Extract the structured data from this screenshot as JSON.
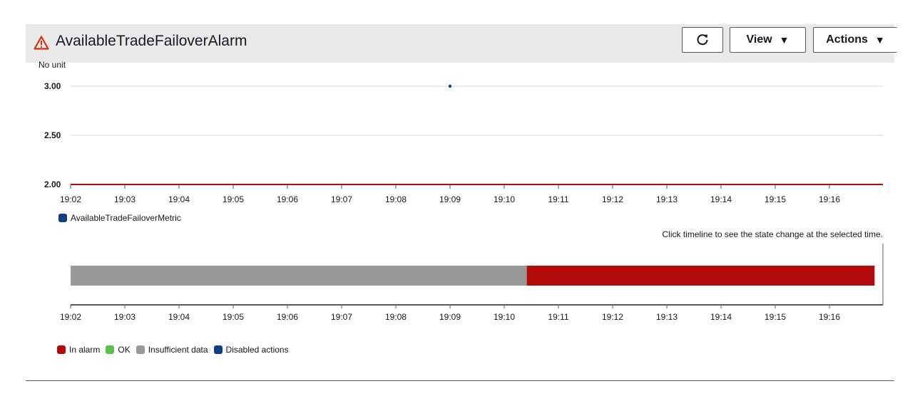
{
  "header": {
    "title": "AvailableTradeFailoverAlarm",
    "status_icon": "warning-triangle-icon",
    "refresh_icon": "refresh-icon",
    "view_label": "View",
    "actions_label": "Actions",
    "caret": "▼"
  },
  "metric_chart": {
    "unit_label": "No unit",
    "legend": [
      {
        "label": "AvailableTradeFailoverMetric",
        "color": "#0f3f80"
      }
    ]
  },
  "timeline": {
    "hint": "Click timeline to see the state change at the selected time.",
    "legend": [
      {
        "label": "In alarm",
        "color": "#b30b0b"
      },
      {
        "label": "OK",
        "color": "#5ac24a"
      },
      {
        "label": "Insufficient data",
        "color": "#999999"
      },
      {
        "label": "Disabled actions",
        "color": "#0f3f80"
      }
    ]
  },
  "chart_data": [
    {
      "type": "scatter",
      "ylabel": "No unit",
      "ylim": [
        2.0,
        3.0
      ],
      "yticks": [
        "2.00",
        "2.50",
        "3.00"
      ],
      "xticks": [
        "19:02",
        "19:03",
        "19:04",
        "19:05",
        "19:06",
        "19:07",
        "19:08",
        "19:09",
        "19:10",
        "19:11",
        "19:12",
        "19:13",
        "19:14",
        "19:15",
        "19:16"
      ],
      "xlim": [
        "19:02",
        "19:16:50"
      ],
      "series": [
        {
          "name": "AvailableTradeFailoverMetric",
          "color": "#0f3f80",
          "points": [
            {
              "x": "19:09",
              "y": 3.0
            }
          ]
        }
      ],
      "threshold": {
        "value": 2.0,
        "color": "#b30b0b"
      },
      "grid": true
    },
    {
      "type": "bar",
      "xticks": [
        "19:02",
        "19:03",
        "19:04",
        "19:05",
        "19:06",
        "19:07",
        "19:08",
        "19:09",
        "19:10",
        "19:11",
        "19:12",
        "19:13",
        "19:14",
        "19:15",
        "19:16"
      ],
      "xlim": [
        "19:02",
        "19:16:50"
      ],
      "segments": [
        {
          "state": "Insufficient data",
          "start": "19:02",
          "end": "19:10:25",
          "color": "#999999"
        },
        {
          "state": "In alarm",
          "start": "19:10:25",
          "end": "19:16:50",
          "color": "#b30b0b"
        }
      ]
    }
  ]
}
